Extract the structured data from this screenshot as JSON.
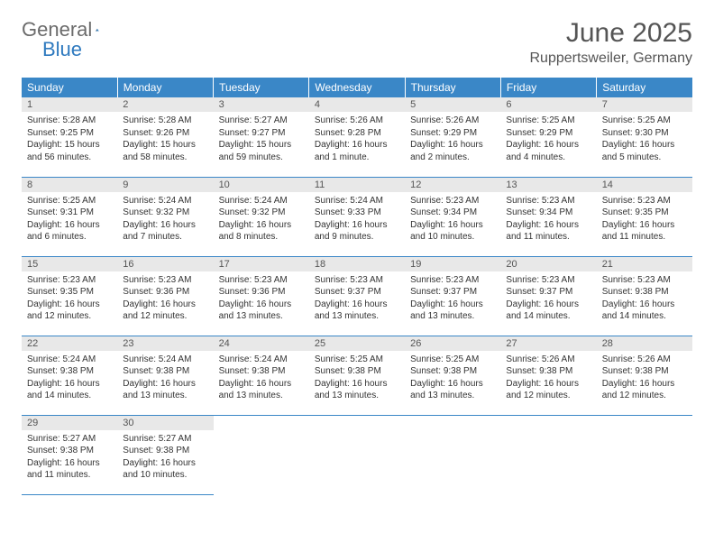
{
  "logo": {
    "general": "General",
    "blue": "Blue"
  },
  "title": "June 2025",
  "location": "Ruppertsweiler, Germany",
  "colors": {
    "header_bg": "#3a87c7",
    "header_text": "#ffffff",
    "daynum_bg": "#e8e8e8",
    "daynum_text": "#555555",
    "body_text": "#333333",
    "logo_gray": "#6b6b6b",
    "logo_blue": "#2f7abf"
  },
  "weekdays": [
    "Sunday",
    "Monday",
    "Tuesday",
    "Wednesday",
    "Thursday",
    "Friday",
    "Saturday"
  ],
  "days": [
    {
      "n": "1",
      "sunrise": "5:28 AM",
      "sunset": "9:25 PM",
      "daylight": "15 hours and 56 minutes."
    },
    {
      "n": "2",
      "sunrise": "5:28 AM",
      "sunset": "9:26 PM",
      "daylight": "15 hours and 58 minutes."
    },
    {
      "n": "3",
      "sunrise": "5:27 AM",
      "sunset": "9:27 PM",
      "daylight": "15 hours and 59 minutes."
    },
    {
      "n": "4",
      "sunrise": "5:26 AM",
      "sunset": "9:28 PM",
      "daylight": "16 hours and 1 minute."
    },
    {
      "n": "5",
      "sunrise": "5:26 AM",
      "sunset": "9:29 PM",
      "daylight": "16 hours and 2 minutes."
    },
    {
      "n": "6",
      "sunrise": "5:25 AM",
      "sunset": "9:29 PM",
      "daylight": "16 hours and 4 minutes."
    },
    {
      "n": "7",
      "sunrise": "5:25 AM",
      "sunset": "9:30 PM",
      "daylight": "16 hours and 5 minutes."
    },
    {
      "n": "8",
      "sunrise": "5:25 AM",
      "sunset": "9:31 PM",
      "daylight": "16 hours and 6 minutes."
    },
    {
      "n": "9",
      "sunrise": "5:24 AM",
      "sunset": "9:32 PM",
      "daylight": "16 hours and 7 minutes."
    },
    {
      "n": "10",
      "sunrise": "5:24 AM",
      "sunset": "9:32 PM",
      "daylight": "16 hours and 8 minutes."
    },
    {
      "n": "11",
      "sunrise": "5:24 AM",
      "sunset": "9:33 PM",
      "daylight": "16 hours and 9 minutes."
    },
    {
      "n": "12",
      "sunrise": "5:23 AM",
      "sunset": "9:34 PM",
      "daylight": "16 hours and 10 minutes."
    },
    {
      "n": "13",
      "sunrise": "5:23 AM",
      "sunset": "9:34 PM",
      "daylight": "16 hours and 11 minutes."
    },
    {
      "n": "14",
      "sunrise": "5:23 AM",
      "sunset": "9:35 PM",
      "daylight": "16 hours and 11 minutes."
    },
    {
      "n": "15",
      "sunrise": "5:23 AM",
      "sunset": "9:35 PM",
      "daylight": "16 hours and 12 minutes."
    },
    {
      "n": "16",
      "sunrise": "5:23 AM",
      "sunset": "9:36 PM",
      "daylight": "16 hours and 12 minutes."
    },
    {
      "n": "17",
      "sunrise": "5:23 AM",
      "sunset": "9:36 PM",
      "daylight": "16 hours and 13 minutes."
    },
    {
      "n": "18",
      "sunrise": "5:23 AM",
      "sunset": "9:37 PM",
      "daylight": "16 hours and 13 minutes."
    },
    {
      "n": "19",
      "sunrise": "5:23 AM",
      "sunset": "9:37 PM",
      "daylight": "16 hours and 13 minutes."
    },
    {
      "n": "20",
      "sunrise": "5:23 AM",
      "sunset": "9:37 PM",
      "daylight": "16 hours and 14 minutes."
    },
    {
      "n": "21",
      "sunrise": "5:23 AM",
      "sunset": "9:38 PM",
      "daylight": "16 hours and 14 minutes."
    },
    {
      "n": "22",
      "sunrise": "5:24 AM",
      "sunset": "9:38 PM",
      "daylight": "16 hours and 14 minutes."
    },
    {
      "n": "23",
      "sunrise": "5:24 AM",
      "sunset": "9:38 PM",
      "daylight": "16 hours and 13 minutes."
    },
    {
      "n": "24",
      "sunrise": "5:24 AM",
      "sunset": "9:38 PM",
      "daylight": "16 hours and 13 minutes."
    },
    {
      "n": "25",
      "sunrise": "5:25 AM",
      "sunset": "9:38 PM",
      "daylight": "16 hours and 13 minutes."
    },
    {
      "n": "26",
      "sunrise": "5:25 AM",
      "sunset": "9:38 PM",
      "daylight": "16 hours and 13 minutes."
    },
    {
      "n": "27",
      "sunrise": "5:26 AM",
      "sunset": "9:38 PM",
      "daylight": "16 hours and 12 minutes."
    },
    {
      "n": "28",
      "sunrise": "5:26 AM",
      "sunset": "9:38 PM",
      "daylight": "16 hours and 12 minutes."
    },
    {
      "n": "29",
      "sunrise": "5:27 AM",
      "sunset": "9:38 PM",
      "daylight": "16 hours and 11 minutes."
    },
    {
      "n": "30",
      "sunrise": "5:27 AM",
      "sunset": "9:38 PM",
      "daylight": "16 hours and 10 minutes."
    }
  ],
  "labels": {
    "sunrise": "Sunrise:",
    "sunset": "Sunset:",
    "daylight": "Daylight:"
  }
}
